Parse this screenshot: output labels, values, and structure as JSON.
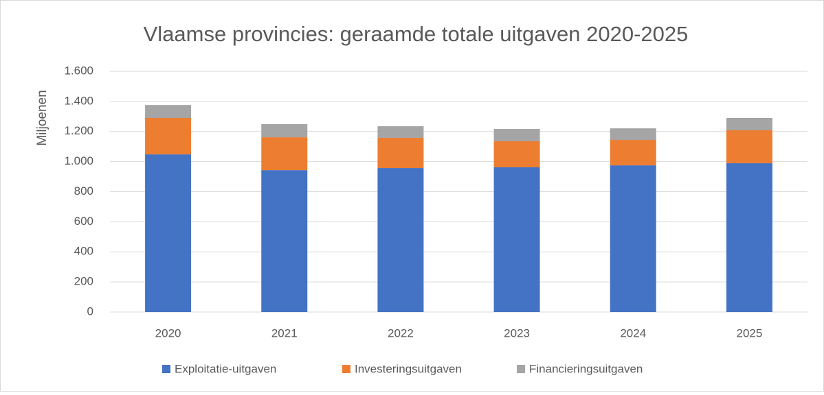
{
  "chart_data": {
    "type": "stacked_bar",
    "title": "Vlaamse provincies: geraamde totale uitgaven 2020-2025",
    "y_label": "Miljoenen",
    "categories": [
      "2020",
      "2021",
      "2022",
      "2023",
      "2024",
      "2025"
    ],
    "series": [
      {
        "name": "Exploitatie-uitgaven",
        "color": "#4472c4",
        "values": [
          1048,
          943,
          957,
          962,
          975,
          989
        ]
      },
      {
        "name": "Investeringsuitgaven",
        "color": "#ed7d31",
        "values": [
          242,
          219,
          201,
          173,
          169,
          219
        ]
      },
      {
        "name": "Financieringsuitgaven",
        "color": "#a5a5a5",
        "values": [
          86,
          87,
          77,
          82,
          77,
          82
        ]
      }
    ],
    "ylim": [
      0,
      1600
    ],
    "yticks": [
      0,
      200,
      400,
      600,
      800,
      {
        "value": 1000,
        "label": "1.000"
      },
      {
        "value": 1200,
        "label": "1.200"
      },
      {
        "value": 1400,
        "label": "1.400"
      },
      {
        "value": 1600,
        "label": "1.600"
      }
    ],
    "grid": true,
    "legend": "bottom"
  }
}
